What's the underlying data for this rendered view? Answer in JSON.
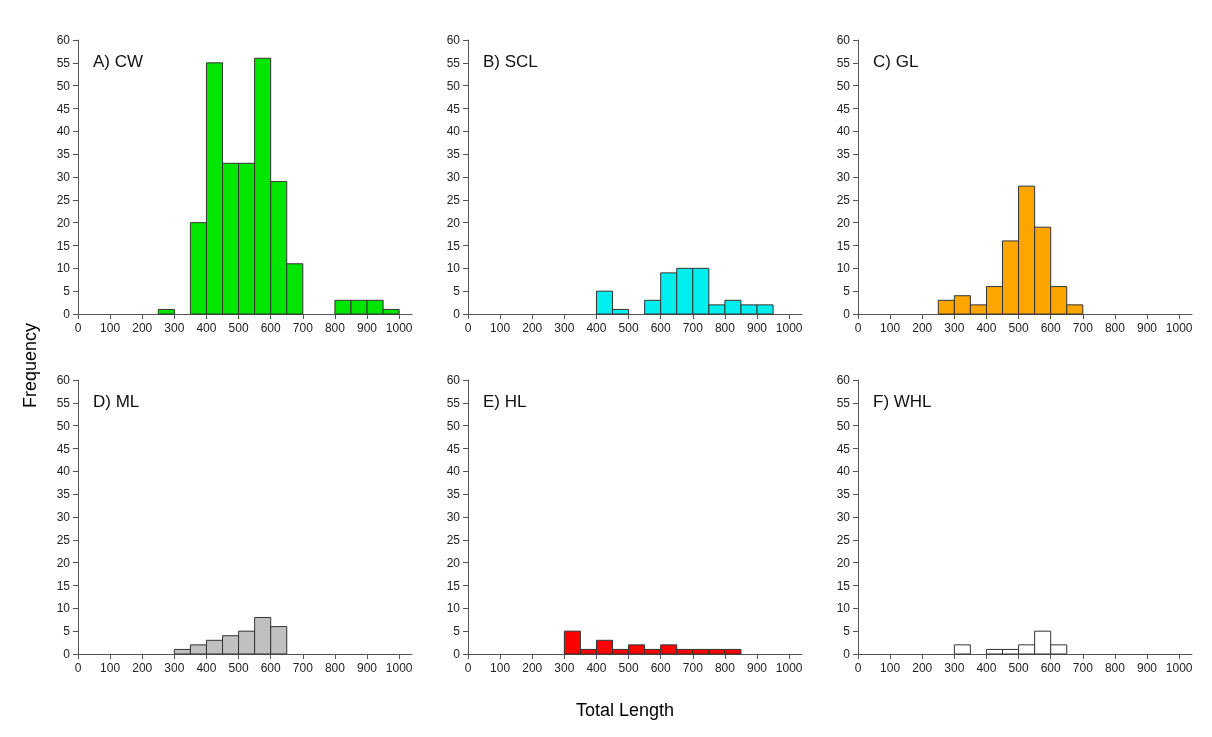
{
  "chart_data": [
    {
      "type": "histogram",
      "title": "A) CW",
      "ylabel": "Frequency",
      "color": "#00e600",
      "bins": [
        0,
        50,
        100,
        150,
        200,
        250,
        300,
        350,
        400,
        450,
        500,
        550,
        600,
        650,
        700,
        750,
        800,
        850,
        900,
        950,
        1000
      ],
      "values": [
        0,
        0,
        0,
        0,
        0,
        1,
        0,
        20,
        55,
        33,
        33,
        56,
        29,
        11,
        0,
        0,
        3,
        3,
        3,
        1
      ],
      "xlim": [
        0,
        1040
      ],
      "xticks": [
        0,
        100,
        200,
        300,
        400,
        500,
        600,
        700,
        800,
        900,
        1000
      ],
      "ylim": [
        0,
        60
      ],
      "yticks": [
        0,
        5,
        10,
        15,
        20,
        25,
        30,
        35,
        40,
        45,
        50,
        55,
        60
      ]
    },
    {
      "type": "histogram",
      "title": "B) SCL",
      "color": "#00eeee",
      "bins": [
        0,
        50,
        100,
        150,
        200,
        250,
        300,
        350,
        400,
        450,
        500,
        550,
        600,
        650,
        700,
        750,
        800,
        850,
        900,
        950,
        1000
      ],
      "values": [
        0,
        0,
        0,
        0,
        0,
        0,
        0,
        0,
        5,
        1,
        0,
        3,
        9,
        10,
        10,
        2,
        3,
        2,
        2,
        0
      ],
      "xlim": [
        0,
        1040
      ],
      "xticks": [
        0,
        100,
        200,
        300,
        400,
        500,
        600,
        700,
        800,
        900,
        1000
      ],
      "ylim": [
        0,
        60
      ],
      "yticks": [
        0,
        5,
        10,
        15,
        20,
        25,
        30,
        35,
        40,
        45,
        50,
        55,
        60
      ]
    },
    {
      "type": "histogram",
      "title": "C) GL",
      "color": "#ffa500",
      "bins": [
        0,
        50,
        100,
        150,
        200,
        250,
        300,
        350,
        400,
        450,
        500,
        550,
        600,
        650,
        700,
        750,
        800,
        850,
        900,
        950,
        1000
      ],
      "values": [
        0,
        0,
        0,
        0,
        0,
        3,
        4,
        2,
        6,
        16,
        28,
        19,
        6,
        2,
        0,
        0,
        0,
        0,
        0,
        0
      ],
      "xlim": [
        0,
        1040
      ],
      "xticks": [
        0,
        100,
        200,
        300,
        400,
        500,
        600,
        700,
        800,
        900,
        1000
      ],
      "ylim": [
        0,
        60
      ],
      "yticks": [
        0,
        5,
        10,
        15,
        20,
        25,
        30,
        35,
        40,
        45,
        50,
        55,
        60
      ]
    },
    {
      "type": "histogram",
      "title": "D) ML",
      "color": "#c0c0c0",
      "bins": [
        0,
        50,
        100,
        150,
        200,
        250,
        300,
        350,
        400,
        450,
        500,
        550,
        600,
        650,
        700,
        750,
        800,
        850,
        900,
        950,
        1000
      ],
      "values": [
        0,
        0,
        0,
        0,
        0,
        0,
        1,
        2,
        3,
        4,
        5,
        8,
        6,
        0,
        0,
        0,
        0,
        0,
        0,
        0
      ],
      "xlim": [
        0,
        1040
      ],
      "xticks": [
        0,
        100,
        200,
        300,
        400,
        500,
        600,
        700,
        800,
        900,
        1000
      ],
      "ylim": [
        0,
        60
      ],
      "yticks": [
        0,
        5,
        10,
        15,
        20,
        25,
        30,
        35,
        40,
        45,
        50,
        55,
        60
      ]
    },
    {
      "type": "histogram",
      "title": "E) HL",
      "xlabel": "Total Length",
      "color": "#ff0000",
      "bins": [
        0,
        50,
        100,
        150,
        200,
        250,
        300,
        350,
        400,
        450,
        500,
        550,
        600,
        650,
        700,
        750,
        800,
        850,
        900,
        950,
        1000
      ],
      "values": [
        0,
        0,
        0,
        0,
        0,
        0,
        5,
        1,
        3,
        1,
        2,
        1,
        2,
        1,
        1,
        1,
        1,
        0,
        0,
        0
      ],
      "xlim": [
        0,
        1040
      ],
      "xticks": [
        0,
        100,
        200,
        300,
        400,
        500,
        600,
        700,
        800,
        900,
        1000
      ],
      "ylim": [
        0,
        60
      ],
      "yticks": [
        0,
        5,
        10,
        15,
        20,
        25,
        30,
        35,
        40,
        45,
        50,
        55,
        60
      ]
    },
    {
      "type": "histogram",
      "title": "F) WHL",
      "color": "#ffffff",
      "bins": [
        0,
        50,
        100,
        150,
        200,
        250,
        300,
        350,
        400,
        450,
        500,
        550,
        600,
        650,
        700,
        750,
        800,
        850,
        900,
        950,
        1000
      ],
      "values": [
        0,
        0,
        0,
        0,
        0,
        0,
        2,
        0,
        1,
        1,
        2,
        5,
        2,
        0,
        0,
        0,
        0,
        0,
        0,
        0
      ],
      "xlim": [
        0,
        1040
      ],
      "xticks": [
        0,
        100,
        200,
        300,
        400,
        500,
        600,
        700,
        800,
        900,
        1000
      ],
      "ylim": [
        0,
        60
      ],
      "yticks": [
        0,
        5,
        10,
        15,
        20,
        25,
        30,
        35,
        40,
        45,
        50,
        55,
        60
      ]
    }
  ]
}
